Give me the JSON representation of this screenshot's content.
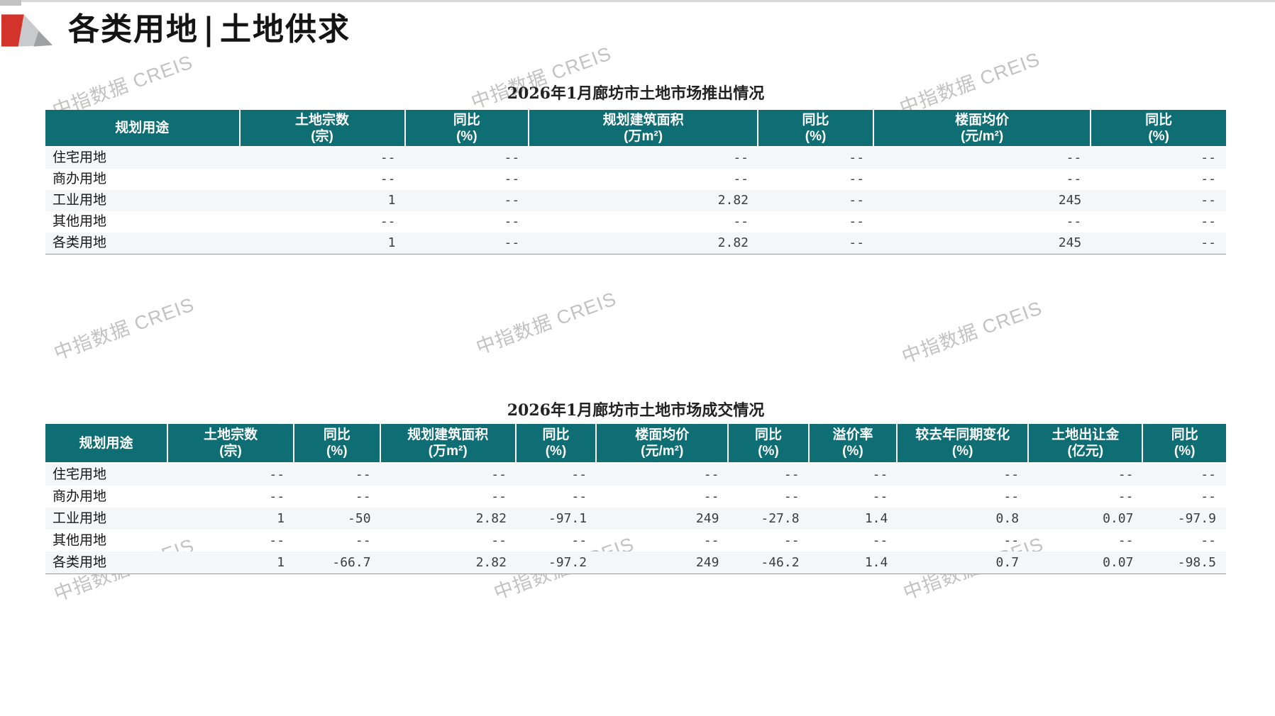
{
  "page": {
    "top_title": {
      "left": "各类用地",
      "separator": "|",
      "right": "土地供求"
    },
    "watermark": "中指数据 CREIS"
  },
  "colors": {
    "header_teal": "#0F6E74",
    "row_alt": "#F4F6F7",
    "accent_red": "#D2342C",
    "logo_gray": "#C9CACB",
    "logo_dark_gray": "#9FA0A2"
  },
  "tables": [
    {
      "title": "2026年1月廊坊市土地市场推出情况",
      "columns": [
        {
          "line1": "规划用途",
          "line2": ""
        },
        {
          "line1": "土地宗数",
          "line2": "(宗)"
        },
        {
          "line1": "同比",
          "line2": "(%)"
        },
        {
          "line1": "规划建筑面积",
          "line2": "(万m²)"
        },
        {
          "line1": "同比",
          "line2": "(%)"
        },
        {
          "line1": "楼面均价",
          "line2": "(元/m²)"
        },
        {
          "line1": "同比",
          "line2": "(%)"
        }
      ],
      "rows": [
        {
          "label": "住宅用地",
          "values": [
            "--",
            "--",
            "--",
            "--",
            "--",
            "--"
          ]
        },
        {
          "label": "商办用地",
          "values": [
            "--",
            "--",
            "--",
            "--",
            "--",
            "--"
          ]
        },
        {
          "label": "工业用地",
          "values": [
            "1",
            "--",
            "2.82",
            "--",
            "245",
            "--"
          ]
        },
        {
          "label": "其他用地",
          "values": [
            "--",
            "--",
            "--",
            "--",
            "--",
            "--"
          ]
        },
        {
          "label": "各类用地",
          "values": [
            "1",
            "--",
            "2.82",
            "--",
            "245",
            "--"
          ]
        }
      ]
    },
    {
      "title": "2026年1月廊坊市土地市场成交情况",
      "columns": [
        {
          "line1": "规划用途",
          "line2": ""
        },
        {
          "line1": "土地宗数",
          "line2": "(宗)"
        },
        {
          "line1": "同比",
          "line2": "(%)"
        },
        {
          "line1": "规划建筑面积",
          "line2": "(万m²)"
        },
        {
          "line1": "同比",
          "line2": "(%)"
        },
        {
          "line1": "楼面均价",
          "line2": "(元/m²)"
        },
        {
          "line1": "同比",
          "line2": "(%)"
        },
        {
          "line1": "溢价率",
          "line2": "(%)"
        },
        {
          "line1": "较去年同期变化",
          "line2": "(%)"
        },
        {
          "line1": "土地出让金",
          "line2": "(亿元)"
        },
        {
          "line1": "同比",
          "line2": "(%)"
        }
      ],
      "rows": [
        {
          "label": "住宅用地",
          "values": [
            "--",
            "--",
            "--",
            "--",
            "--",
            "--",
            "--",
            "--",
            "--",
            "--"
          ]
        },
        {
          "label": "商办用地",
          "values": [
            "--",
            "--",
            "--",
            "--",
            "--",
            "--",
            "--",
            "--",
            "--",
            "--"
          ]
        },
        {
          "label": "工业用地",
          "values": [
            "1",
            "-50",
            "2.82",
            "-97.1",
            "249",
            "-27.8",
            "1.4",
            "0.8",
            "0.07",
            "-97.9"
          ]
        },
        {
          "label": "其他用地",
          "values": [
            "--",
            "--",
            "--",
            "--",
            "--",
            "--",
            "--",
            "--",
            "--",
            "--"
          ]
        },
        {
          "label": "各类用地",
          "values": [
            "1",
            "-66.7",
            "2.82",
            "-97.2",
            "249",
            "-46.2",
            "1.4",
            "0.7",
            "0.07",
            "-98.5"
          ]
        }
      ]
    }
  ]
}
